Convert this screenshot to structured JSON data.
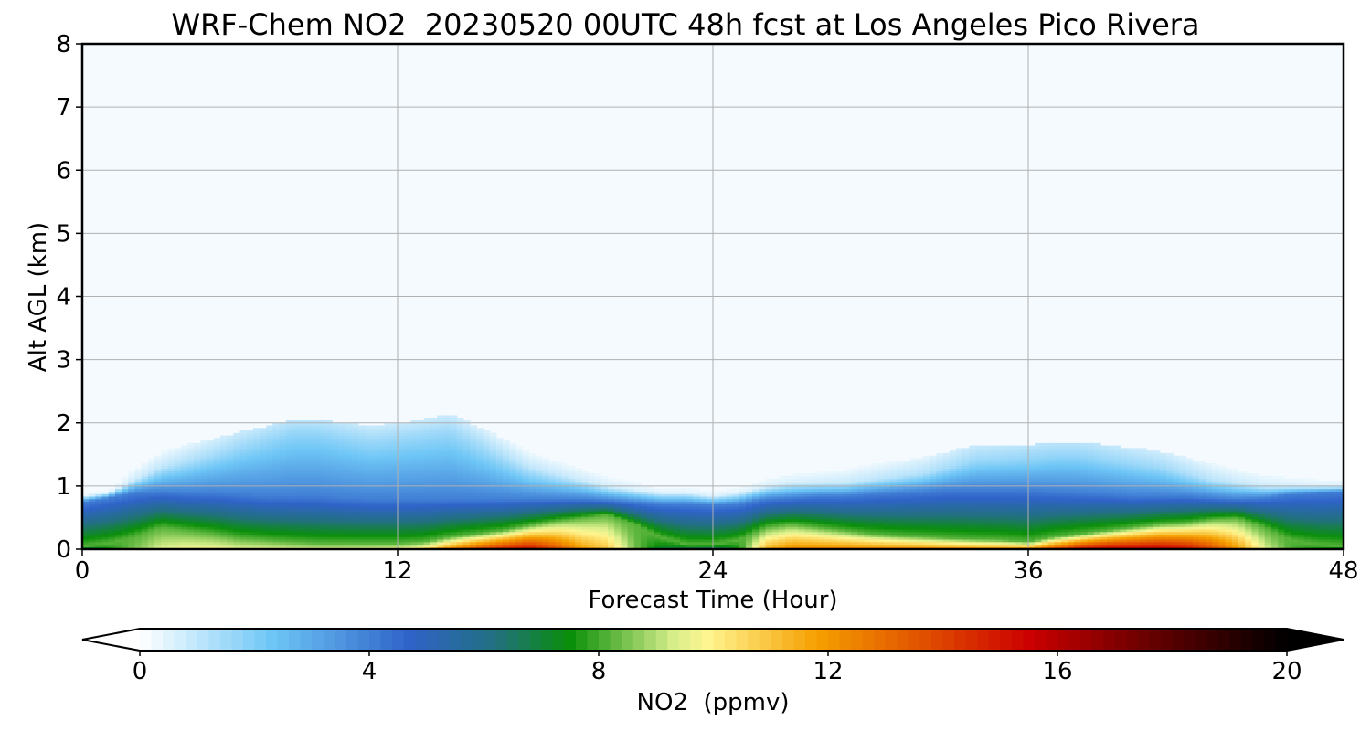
{
  "chart_data": {
    "type": "heatmap",
    "title": "WRF-Chem NO2  20230520 00UTC 48h fcst at Los Angeles Pico Rivera",
    "xlabel": "Forecast Time (Hour)",
    "ylabel": "Alt AGL (km)",
    "xlim": [
      0,
      48
    ],
    "ylim": [
      0,
      8
    ],
    "xticks": [
      0,
      12,
      24,
      36,
      48
    ],
    "yticks": [
      0,
      1,
      2,
      3,
      4,
      5,
      6,
      7,
      8
    ],
    "grid": true,
    "colorbar": {
      "label": "NO2  (ppmv)",
      "range": [
        0,
        20
      ],
      "ticks": [
        0,
        4,
        8,
        12,
        16,
        20
      ],
      "extend": "both",
      "color_stops": [
        {
          "value": 0,
          "color": "#ffffff"
        },
        {
          "value": 2.3,
          "color": "#6ec6f6"
        },
        {
          "value": 4.7,
          "color": "#2f63c8"
        },
        {
          "value": 6.2,
          "color": "#227080"
        },
        {
          "value": 7.5,
          "color": "#0a8f0a"
        },
        {
          "value": 9.3,
          "color": "#d6ee8a"
        },
        {
          "value": 9.9,
          "color": "#fff590"
        },
        {
          "value": 11.8,
          "color": "#f5a000"
        },
        {
          "value": 15.5,
          "color": "#cc0000"
        },
        {
          "value": 18.0,
          "color": "#550000"
        },
        {
          "value": 20,
          "color": "#000000"
        }
      ]
    },
    "hours": [
      0,
      1,
      2,
      3,
      4,
      5,
      6,
      7,
      8,
      9,
      10,
      11,
      12,
      13,
      14,
      15,
      16,
      17,
      18,
      19,
      20,
      21,
      22,
      23,
      24,
      25,
      26,
      27,
      28,
      29,
      30,
      31,
      32,
      33,
      34,
      35,
      36,
      37,
      38,
      39,
      40,
      41,
      42,
      43,
      44,
      45,
      46,
      47,
      48
    ],
    "altitudes_km": [
      0,
      0.1,
      0.2,
      0.3,
      0.4,
      0.5,
      0.6,
      0.7,
      0.8,
      1.0,
      1.2,
      1.5,
      2.0,
      3.0
    ],
    "profiles": {
      "mixing_height_km": [
        0.75,
        0.82,
        0.9,
        0.92,
        0.9,
        0.9,
        0.88,
        0.85,
        0.85,
        0.85,
        0.82,
        0.8,
        0.8,
        0.8,
        0.8,
        0.8,
        0.8,
        0.8,
        0.8,
        0.8,
        0.78,
        0.75,
        0.72,
        0.72,
        0.7,
        0.72,
        0.8,
        0.82,
        0.85,
        0.85,
        0.88,
        0.9,
        0.92,
        0.95,
        0.95,
        0.95,
        0.95,
        0.92,
        0.9,
        0.88,
        0.85,
        0.85,
        0.85,
        0.82,
        0.8,
        0.82,
        0.88,
        0.9,
        0.92
      ],
      "high_layer_km": [
        0.05,
        0.1,
        0.2,
        0.35,
        0.3,
        0.25,
        0.18,
        0.15,
        0.12,
        0.1,
        0.1,
        0.1,
        0.1,
        0.12,
        0.2,
        0.25,
        0.3,
        0.38,
        0.45,
        0.5,
        0.55,
        0.4,
        0.2,
        0.08,
        0.08,
        0.15,
        0.35,
        0.4,
        0.35,
        0.3,
        0.25,
        0.22,
        0.2,
        0.18,
        0.16,
        0.15,
        0.12,
        0.2,
        0.25,
        0.3,
        0.35,
        0.4,
        0.42,
        0.48,
        0.5,
        0.35,
        0.15,
        0.08,
        0.05
      ],
      "surface_peak_ppmv": [
        6.5,
        7.5,
        8.5,
        9.5,
        9.8,
        9.8,
        9.6,
        9.6,
        9.5,
        9.5,
        9.5,
        9.6,
        9.8,
        10.5,
        12.5,
        14,
        15,
        15.5,
        14,
        12,
        11,
        8.5,
        7,
        6.5,
        6,
        7.5,
        11.5,
        12.5,
        12.5,
        12.5,
        12.5,
        12.5,
        12.5,
        12.3,
        12.3,
        12.3,
        12.5,
        14,
        15.5,
        16,
        16,
        16,
        15.5,
        14,
        12,
        9.5,
        8,
        7.5,
        7
      ],
      "plume_top_km": [
        0.85,
        0.9,
        1.1,
        1.3,
        1.4,
        1.5,
        1.6,
        1.7,
        1.8,
        1.8,
        1.75,
        1.7,
        1.75,
        1.8,
        1.9,
        1.7,
        1.5,
        1.3,
        1.2,
        1.1,
        1.0,
        0.95,
        0.9,
        0.9,
        0.85,
        0.9,
        1.0,
        1.05,
        1.05,
        1.05,
        1.1,
        1.15,
        1.2,
        1.3,
        1.4,
        1.4,
        1.4,
        1.45,
        1.45,
        1.4,
        1.35,
        1.3,
        1.2,
        1.1,
        1.05,
        1.0,
        1.0,
        1.0,
        1.0
      ],
      "plume_top_ppmv": [
        0.3,
        0.4,
        0.8,
        1.0,
        1.2,
        1.4,
        1.6,
        1.7,
        1.8,
        1.8,
        1.7,
        1.6,
        1.6,
        1.6,
        1.5,
        1.4,
        1.2,
        1.0,
        0.9,
        0.8,
        0.7,
        0.6,
        0.5,
        0.5,
        0.5,
        0.5,
        0.6,
        0.7,
        0.8,
        0.9,
        1.0,
        1.1,
        1.2,
        1.4,
        1.6,
        1.7,
        1.8,
        1.8,
        1.8,
        1.7,
        1.6,
        1.5,
        1.3,
        1.1,
        0.9,
        0.8,
        0.7,
        0.6,
        0.6
      ]
    }
  }
}
